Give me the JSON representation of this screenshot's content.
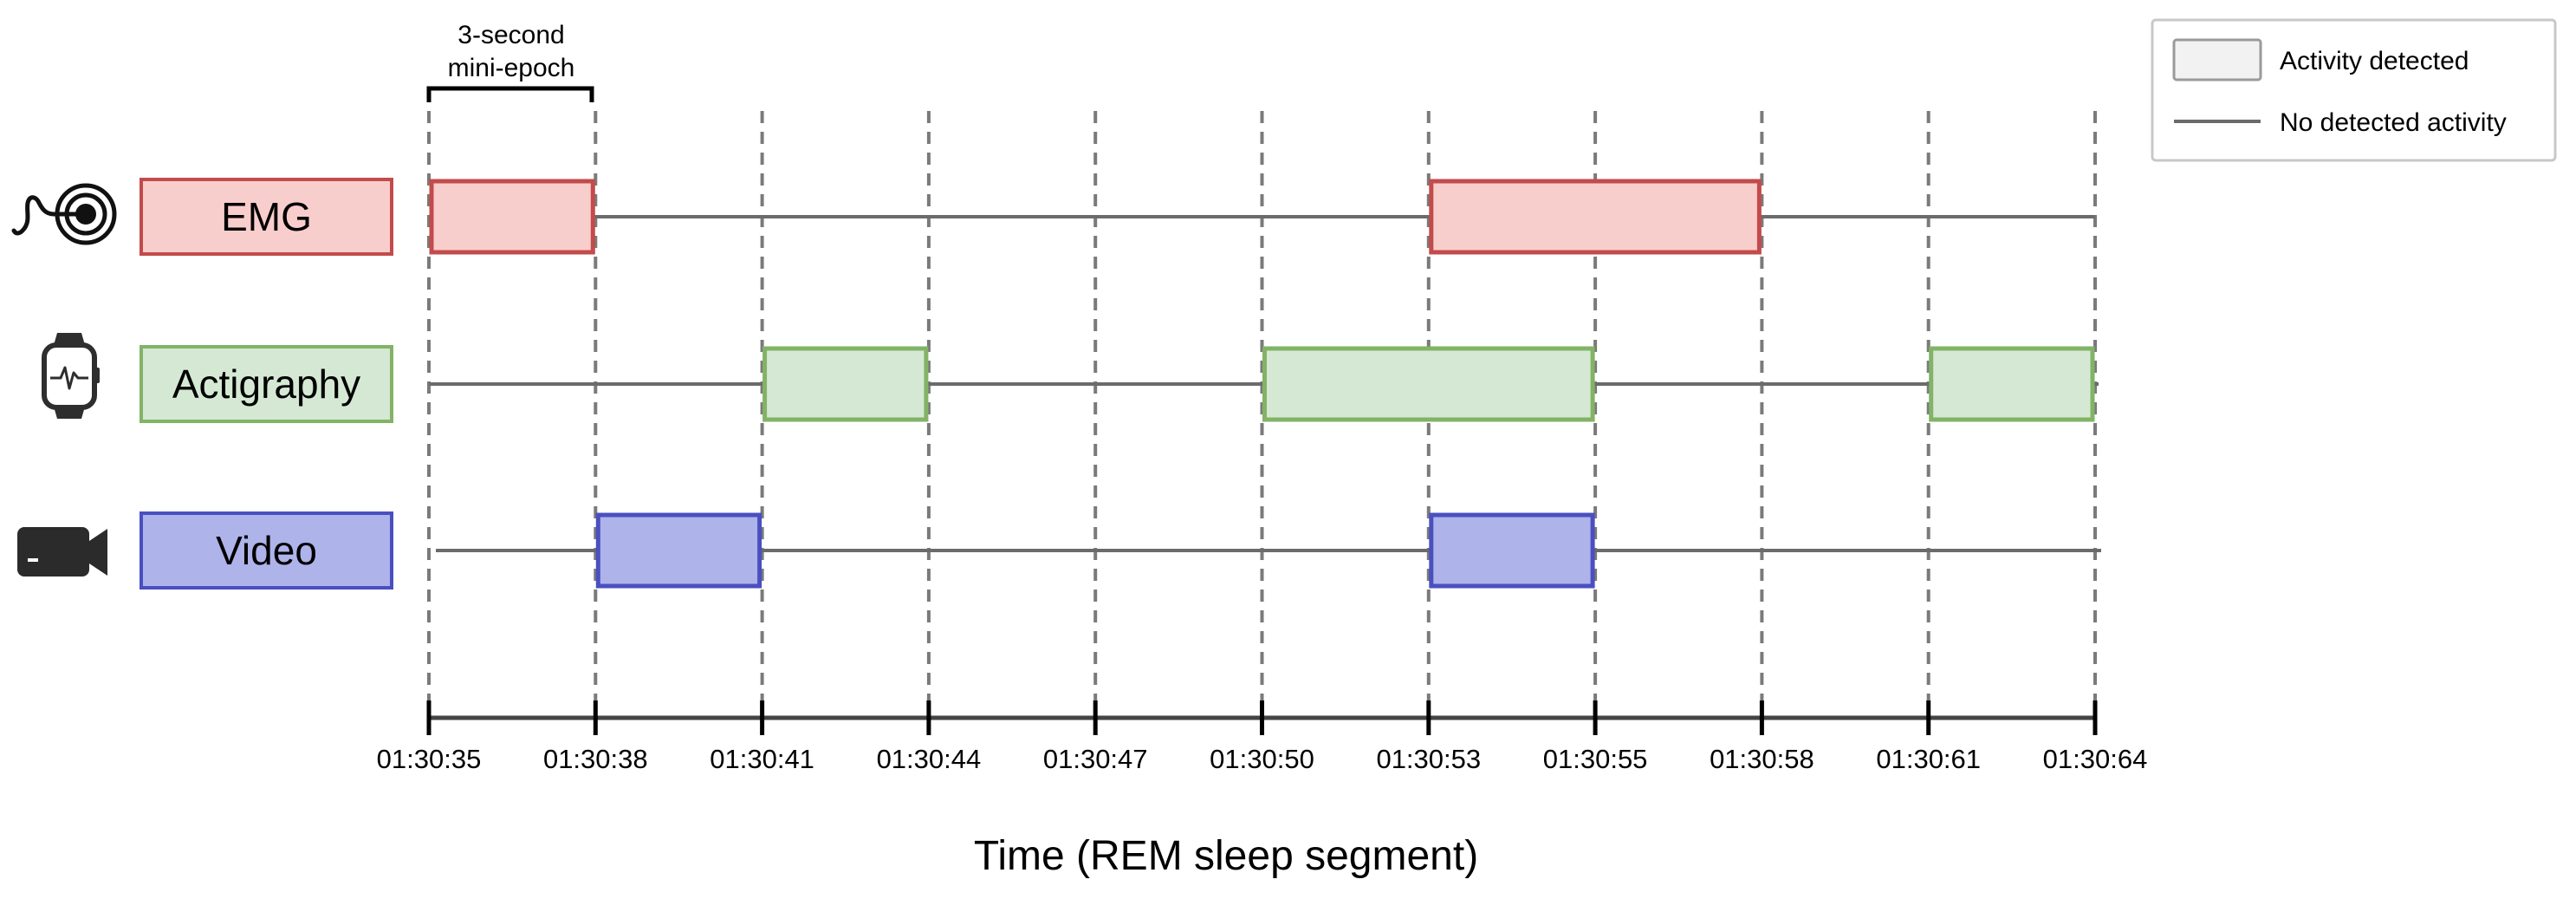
{
  "annotation": {
    "line1": "3-second",
    "line2": "mini-epoch"
  },
  "legend": {
    "activity_label": "Activity detected",
    "no_activity_label": "No detected activity",
    "box_fill": "#f2f2f2",
    "box_stroke": "#9a9a9a",
    "line_color": "#6b6b6b"
  },
  "modalities": [
    {
      "key": "emg",
      "label": "EMG",
      "icon": "emg-electrode-icon",
      "fill": "#f8cecc",
      "stroke": "#c34b4b",
      "active_epochs": [
        [
          0,
          1
        ],
        [
          6,
          8
        ]
      ]
    },
    {
      "key": "actigraphy",
      "label": "Actigraphy",
      "icon": "smartwatch-icon",
      "fill": "#d5e8d4",
      "stroke": "#82b366",
      "active_epochs": [
        [
          2,
          3
        ],
        [
          5,
          7
        ],
        [
          9,
          10
        ]
      ]
    },
    {
      "key": "video",
      "label": "Video",
      "icon": "video-camera-icon",
      "fill": "#aeb3ea",
      "stroke": "#4a4fc0",
      "active_epochs": [
        [
          1,
          2
        ],
        [
          6,
          7
        ]
      ]
    }
  ],
  "axis": {
    "ticks": [
      "01:30:35",
      "01:30:38",
      "01:30:41",
      "01:30:44",
      "01:30:47",
      "01:30:50",
      "01:30:53",
      "01:30:55",
      "01:30:58",
      "01:30:61",
      "01:30:64"
    ],
    "title": "Time (REM sleep segment)"
  }
}
